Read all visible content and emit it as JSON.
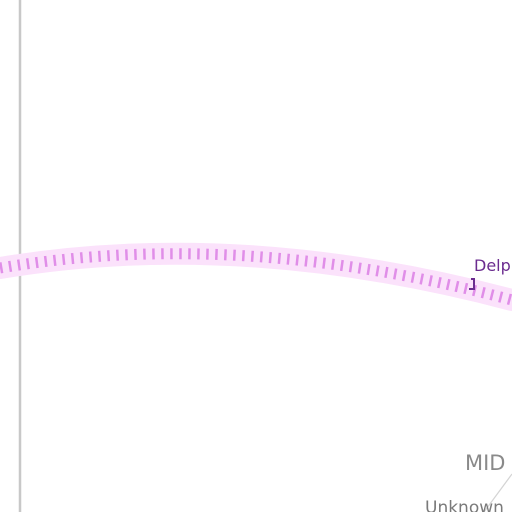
{
  "map": {
    "station_label": "Delp",
    "district_label": "MID",
    "sub_label": "Unknown",
    "colors": {
      "rail_line": "#e08ee8",
      "rail_glow": "#fbe2fb",
      "station_label": "#6b2c8f",
      "boundary_line": "#c8c8c8",
      "district_label": "#8a8a8a",
      "background": "#ffffff"
    }
  }
}
